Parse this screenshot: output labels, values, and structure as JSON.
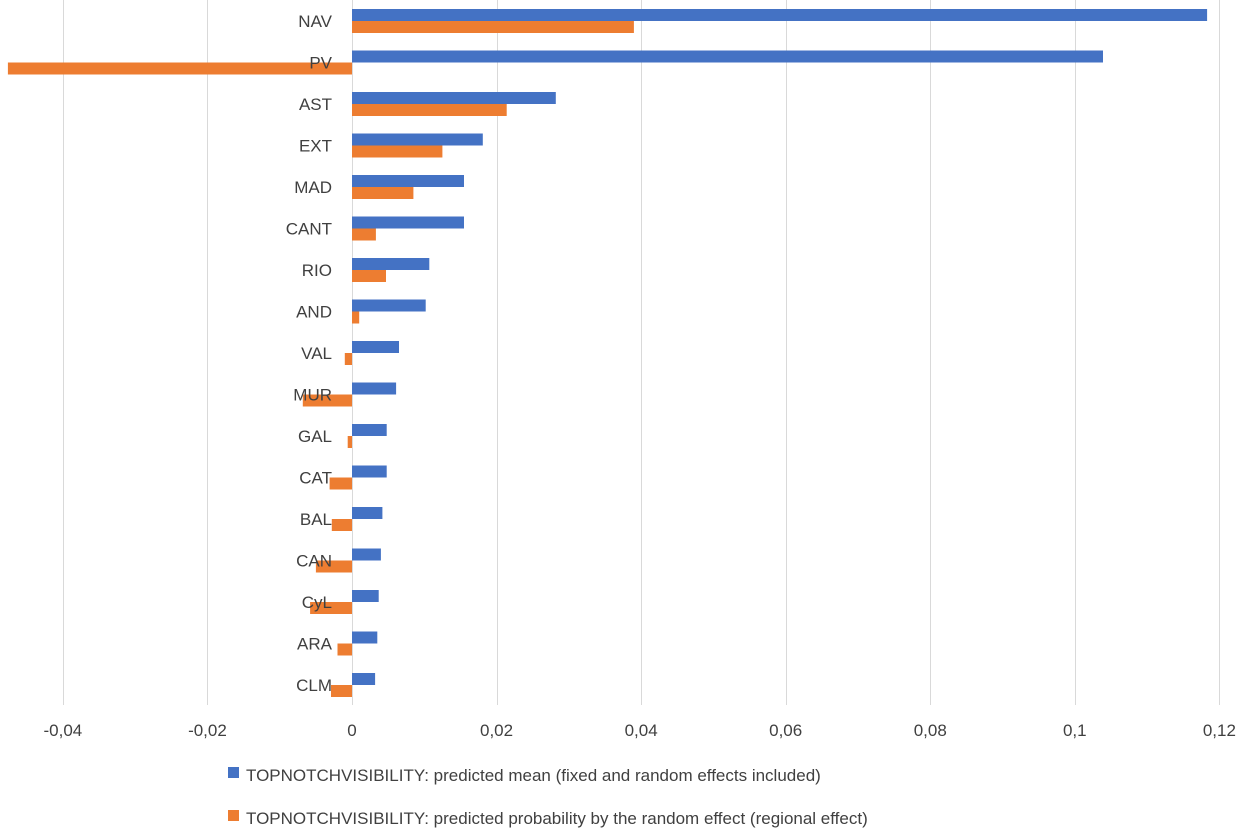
{
  "chart_data": {
    "type": "bar",
    "orientation": "horizontal",
    "categories": [
      "NAV",
      "PV",
      "AST",
      "EXT",
      "MAD",
      "CANT",
      "RIO",
      "AND",
      "VAL",
      "MUR",
      "GAL",
      "CAT",
      "BAL",
      "CAN",
      "CyL",
      "ARA",
      "CLM"
    ],
    "series": [
      {
        "name": "TOPNOTCHVISIBILITY: predicted mean (fixed and random effects included)",
        "color": "#4472C4",
        "values": [
          0.1183,
          0.1039,
          0.0282,
          0.0181,
          0.0155,
          0.0155,
          0.0107,
          0.0102,
          0.0065,
          0.0061,
          0.0048,
          0.0048,
          0.0042,
          0.004,
          0.0037,
          0.0035,
          0.0032
        ]
      },
      {
        "name": "TOPNOTCHVISIBILITY: predicted probability by the random effect (regional effect)",
        "color": "#ED7D31",
        "values": [
          0.039,
          -0.0476,
          0.0214,
          0.0125,
          0.0085,
          0.0033,
          0.0047,
          0.001,
          -0.001,
          -0.0068,
          -0.0006,
          -0.0031,
          -0.0028,
          -0.005,
          -0.0058,
          -0.002,
          -0.0029
        ]
      }
    ],
    "xlim": [
      -0.048,
      0.12
    ],
    "x_ticks": [
      -0.04,
      -0.02,
      0,
      0.02,
      0.04,
      0.06,
      0.08,
      0.1,
      0.12
    ],
    "x_tick_labels": [
      "-0,04",
      "-0,02",
      "0",
      "0,02",
      "0,04",
      "0,06",
      "0,08",
      "0,1",
      "0,12"
    ],
    "grid": "vertical",
    "legend": "bottom",
    "title": "",
    "xlabel": "",
    "ylabel": ""
  }
}
